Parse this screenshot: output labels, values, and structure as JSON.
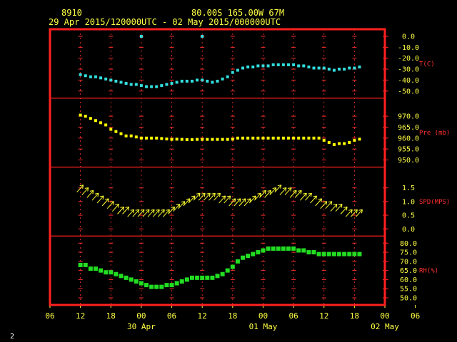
{
  "header": {
    "station": "8910",
    "location": "80.00S  165.00W    67M",
    "period": "29 Apr 2015/120000UTC - 02 May 2015/000000UTC"
  },
  "page_number": "2",
  "colors": {
    "frame": "#ff2020",
    "grid": "#ff3030",
    "temperature": "#33dddd",
    "pressure": "#ffff00",
    "wind": "#ffff33",
    "humidity": "#22dd22",
    "text": "#ffff44"
  },
  "chart_data": {
    "type": "scatter",
    "x_unit": "hours since 29 Apr 2015 06UTC",
    "xlim": [
      0,
      66
    ],
    "x_ticks": [
      "06",
      "12",
      "18",
      "00",
      "06",
      "12",
      "18",
      "00",
      "06",
      "12",
      "18",
      "00",
      "06"
    ],
    "date_labels": [
      {
        "text": "30 Apr",
        "x": 18
      },
      {
        "text": "01 May",
        "x": 42
      },
      {
        "text": "02 May",
        "x": 66
      }
    ],
    "panels": [
      {
        "label": "T(C)",
        "ylim": [
          -50,
          0
        ],
        "ticks": [
          "0.0",
          "-10.0",
          "-20.0",
          "-30.0",
          "-40.0",
          "-50.0"
        ],
        "tick_values": [
          0,
          -10,
          -20,
          -30,
          -40,
          -50
        ],
        "series": [
          {
            "x": [
              6,
              7,
              8,
              9,
              10,
              11,
              12,
              13,
              14,
              15,
              16,
              17,
              18,
              19,
              20,
              21,
              22,
              23,
              24,
              25,
              26,
              27,
              28,
              29,
              30,
              31,
              32,
              33,
              34,
              35,
              36,
              37,
              38,
              39,
              40,
              41,
              42,
              43,
              44,
              45,
              46,
              47,
              48,
              49,
              50,
              51,
              52,
              53,
              54,
              55,
              56,
              57,
              58,
              59,
              60,
              61
            ],
            "y": [
              -35,
              -36,
              -37,
              -37,
              -38,
              -39,
              -40,
              -41,
              -42,
              -43,
              -44,
              -44,
              -45,
              -46,
              -46,
              -46,
              -45,
              -44,
              -43,
              -42,
              -41,
              -41,
              -41,
              -40,
              -40,
              -41,
              -42,
              -41,
              -39,
              -37,
              -33,
              -31,
              -29,
              -28,
              -28,
              -27,
              -27,
              -27,
              -26,
              -26,
              -26,
              -26,
              -26,
              -27,
              -27,
              -28,
              -29,
              -29,
              -29,
              -30,
              -31,
              -30,
              -30,
              -29,
              -29,
              -28
            ]
          },
          {
            "x": [
              18,
              30
            ],
            "y": 0
          }
        ]
      },
      {
        "label": "Pre (mb)",
        "ylim": [
          950,
          975
        ],
        "ticks": [
          "970.0",
          "965.0",
          "960.0",
          "955.0",
          "950.0"
        ],
        "tick_values": [
          970,
          965,
          960,
          955,
          950
        ],
        "series": [
          {
            "x": [
              6,
              7,
              8,
              9,
              10,
              11,
              12,
              13,
              14,
              15,
              16,
              17,
              18,
              19,
              20,
              21,
              22,
              23,
              24,
              25,
              26,
              27,
              28,
              29,
              30,
              31,
              32,
              33,
              34,
              35,
              36,
              37,
              38,
              39,
              40,
              41,
              42,
              43,
              44,
              45,
              46,
              47,
              48,
              49,
              50,
              51,
              52,
              53,
              54,
              55,
              56,
              57,
              58,
              59,
              60,
              61
            ],
            "y": [
              970.5,
              970,
              969,
              968,
              967,
              966,
              964,
              963,
              962,
              961,
              961,
              960.5,
              960,
              960,
              960,
              960,
              959.8,
              959.6,
              959.4,
              959.5,
              959.4,
              959.3,
              959.3,
              959.4,
              959.4,
              959.4,
              959.4,
              959.4,
              959.4,
              959.4,
              959.5,
              960,
              960,
              960,
              960,
              960,
              960,
              960,
              960,
              960,
              960,
              960,
              960,
              960,
              960,
              960,
              960,
              960,
              959,
              958,
              957,
              957.5,
              957.5,
              958,
              959,
              959.5
            ]
          }
        ]
      },
      {
        "label": "SPD(MPS)",
        "ylim": [
          0,
          2
        ],
        "ticks": [
          "1.5",
          "1.0",
          "0.5",
          "0.0"
        ],
        "tick_values": [
          1.5,
          1.0,
          0.5,
          0.0
        ],
        "series": [
          {
            "x": [
              6,
              7,
              8,
              9,
              10,
              11,
              12,
              13,
              14,
              15,
              16,
              17,
              18,
              19,
              20,
              21,
              22,
              23,
              24,
              25,
              26,
              27,
              28,
              29,
              30,
              31,
              32,
              33,
              34,
              35,
              36,
              37,
              38,
              39,
              40,
              41,
              42,
              43,
              44,
              45,
              46,
              47,
              48,
              49,
              50,
              51,
              52,
              53,
              54,
              55,
              56,
              57,
              58,
              59,
              60,
              61
            ],
            "y": [
              1.5,
              1.4,
              1.3,
              1.2,
              1.1,
              1.0,
              0.9,
              0.8,
              0.7,
              0.7,
              0.6,
              0.6,
              0.6,
              0.6,
              0.6,
              0.6,
              0.6,
              0.6,
              0.7,
              0.8,
              0.9,
              1.0,
              1.1,
              1.2,
              1.2,
              1.2,
              1.2,
              1.2,
              1.1,
              1.1,
              1.0,
              1.0,
              1.0,
              1.0,
              1.1,
              1.2,
              1.3,
              1.3,
              1.4,
              1.5,
              1.4,
              1.4,
              1.3,
              1.3,
              1.2,
              1.2,
              1.1,
              1.0,
              0.9,
              0.9,
              0.8,
              0.8,
              0.7,
              0.6,
              0.6,
              0.6
            ]
          }
        ]
      },
      {
        "label": "RH(%)",
        "ylim": [
          50,
          80
        ],
        "ticks": [
          "80.0",
          "75.0",
          "70.0",
          "65.0",
          "60.0",
          "55.0",
          "50.0"
        ],
        "tick_values": [
          80,
          75,
          70,
          65,
          60,
          55,
          50
        ],
        "series": [
          {
            "x": [
              6,
              7,
              8,
              9,
              10,
              11,
              12,
              13,
              14,
              15,
              16,
              17,
              18,
              19,
              20,
              21,
              22,
              23,
              24,
              25,
              26,
              27,
              28,
              29,
              30,
              31,
              32,
              33,
              34,
              35,
              36,
              37,
              38,
              39,
              40,
              41,
              42,
              43,
              44,
              45,
              46,
              47,
              48,
              49,
              50,
              51,
              52,
              53,
              54,
              55,
              56,
              57,
              58,
              59,
              60,
              61
            ],
            "y": [
              68,
              68,
              66,
              66,
              65,
              64,
              64,
              63,
              62,
              61,
              60,
              59,
              58,
              57,
              56,
              56,
              56,
              57,
              57,
              58,
              59,
              60,
              61,
              61,
              61,
              61,
              61,
              62,
              63,
              65,
              67,
              70,
              72,
              73,
              74,
              75,
              76,
              77,
              77,
              77,
              77,
              77,
              77,
              76,
              76,
              75,
              75,
              74,
              74,
              74,
              74,
              74,
              74,
              74,
              74,
              74
            ]
          }
        ]
      }
    ]
  }
}
